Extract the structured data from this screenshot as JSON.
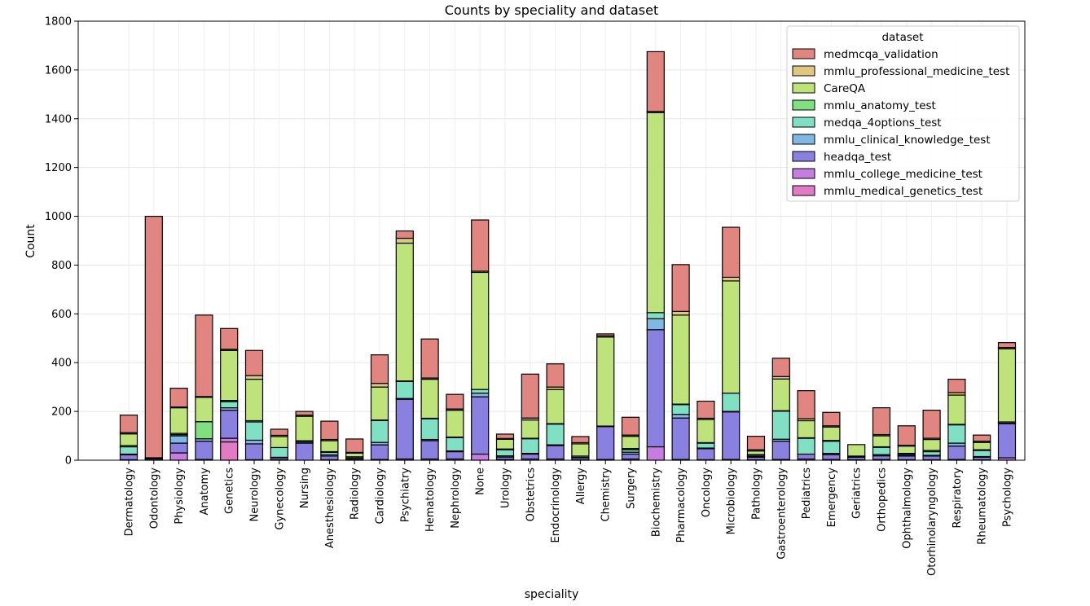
{
  "chart_data": {
    "type": "bar",
    "stacked": true,
    "title": "Counts by speciality and dataset",
    "xlabel": "speciality",
    "ylabel": "Count",
    "ylim": [
      0,
      1800
    ],
    "yticks": [
      0,
      200,
      400,
      600,
      800,
      1000,
      1200,
      1400,
      1600,
      1800
    ],
    "grid": true,
    "legend_title": "dataset",
    "legend_position": "top-right",
    "categories": [
      "Dermatology",
      "Odontology",
      "Physiology",
      "Anatomy",
      "Genetics",
      "Neurology",
      "Gynecology",
      "Nursing",
      "Anesthesiology",
      "Radiology",
      "Cardiology",
      "Psychiatry",
      "Hematology",
      "Nephrology",
      "None",
      "Urology",
      "Obstetrics",
      "Endocrinology",
      "Allergy",
      "Chemistry",
      "Surgery",
      "Biochemistry",
      "Pharmacology",
      "Oncology",
      "Microbiology",
      "Pathology",
      "Gastroenterology",
      "Pediatrics",
      "Emergency",
      "Geriatrics",
      "Orthopedics",
      "Ophthalmology",
      "Otorhinolaryngology",
      "Respiratory",
      "Rheumatology",
      "Psychology"
    ],
    "series": [
      {
        "name": "mmlu_medical_genetics_test",
        "color": "#e07bc4",
        "values": [
          0,
          0,
          0,
          0,
          75,
          0,
          0,
          0,
          0,
          0,
          0,
          0,
          0,
          0,
          0,
          0,
          0,
          0,
          0,
          0,
          0,
          0,
          0,
          0,
          0,
          0,
          0,
          0,
          0,
          0,
          0,
          0,
          0,
          0,
          0,
          0
        ]
      },
      {
        "name": "mmlu_college_medicine_test",
        "color": "#c57ee0",
        "values": [
          2,
          0,
          30,
          3,
          15,
          2,
          2,
          0,
          2,
          2,
          3,
          5,
          5,
          5,
          25,
          3,
          5,
          5,
          2,
          3,
          5,
          55,
          3,
          2,
          3,
          2,
          3,
          5,
          3,
          2,
          3,
          2,
          2,
          3,
          2,
          10
        ]
      },
      {
        "name": "headqa_test",
        "color": "#8a80e0",
        "values": [
          20,
          5,
          40,
          75,
          115,
          65,
          8,
          70,
          15,
          5,
          60,
          245,
          75,
          30,
          235,
          10,
          20,
          55,
          8,
          135,
          20,
          480,
          170,
          45,
          195,
          10,
          75,
          20,
          20,
          10,
          15,
          15,
          15,
          55,
          10,
          140
        ]
      },
      {
        "name": "mmlu_clinical_knowledge_test",
        "color": "#7fb8e0",
        "values": [
          3,
          0,
          30,
          10,
          10,
          15,
          2,
          5,
          5,
          2,
          10,
          3,
          5,
          3,
          15,
          5,
          3,
          3,
          2,
          2,
          8,
          45,
          15,
          3,
          2,
          3,
          8,
          0,
          5,
          2,
          5,
          3,
          3,
          12,
          3,
          2
        ]
      },
      {
        "name": "medqa_4options_test",
        "color": "#7fe0c4",
        "values": [
          30,
          0,
          5,
          0,
          25,
          75,
          40,
          0,
          10,
          5,
          90,
          70,
          85,
          55,
          15,
          25,
          60,
          85,
          5,
          0,
          10,
          25,
          40,
          20,
          75,
          5,
          115,
          65,
          50,
          3,
          30,
          5,
          15,
          75,
          25,
          5
        ]
      },
      {
        "name": "mmlu_anatomy_test",
        "color": "#80e080",
        "values": [
          5,
          0,
          5,
          70,
          5,
          5,
          0,
          5,
          3,
          0,
          2,
          2,
          2,
          2,
          0,
          3,
          2,
          2,
          0,
          0,
          5,
          0,
          2,
          2,
          0,
          3,
          2,
          2,
          3,
          0,
          2,
          3,
          5,
          2,
          3,
          0
        ]
      },
      {
        "name": "CareQA",
        "color": "#bde37a",
        "values": [
          48,
          3,
          105,
          100,
          205,
          170,
          45,
          100,
          45,
          15,
          135,
          565,
          160,
          110,
          480,
          40,
          75,
          140,
          50,
          365,
          50,
          820,
          365,
          95,
          460,
          15,
          130,
          70,
          55,
          47,
          45,
          30,
          45,
          120,
          30,
          300
        ]
      },
      {
        "name": "mmlu_professional_medicine_test",
        "color": "#e0c77f",
        "values": [
          5,
          2,
          3,
          3,
          5,
          15,
          5,
          5,
          5,
          3,
          15,
          20,
          5,
          5,
          5,
          3,
          8,
          10,
          5,
          5,
          5,
          5,
          15,
          5,
          15,
          5,
          10,
          8,
          5,
          0,
          5,
          3,
          5,
          10,
          5,
          5
        ]
      },
      {
        "name": "medmcqa_validation",
        "color": "#e0857f",
        "values": [
          72,
          990,
          77,
          334,
          85,
          103,
          25,
          15,
          75,
          55,
          117,
          30,
          160,
          60,
          210,
          18,
          180,
          95,
          25,
          8,
          73,
          245,
          192,
          70,
          205,
          55,
          75,
          115,
          55,
          0,
          110,
          80,
          115,
          55,
          25,
          20
        ]
      }
    ]
  }
}
